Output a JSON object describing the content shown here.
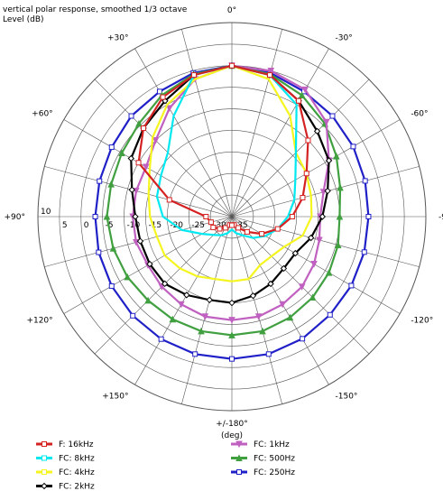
{
  "chart_data": {
    "type": "polar",
    "title": "vertical polar response, smoothed 1/3 octave",
    "ylabel": "Level  (dB)",
    "xlabel": "(deg)",
    "theta": [
      -165,
      -150,
      -135,
      -120,
      -105,
      -90,
      -75,
      -60,
      -45,
      -30,
      -15,
      0,
      15,
      30,
      45,
      60,
      75,
      90,
      105,
      120,
      135,
      150,
      165,
      180
    ],
    "rlim": [
      -35,
      10
    ],
    "rticks": [
      10,
      5,
      0,
      -5,
      -10,
      -15,
      -20,
      -25,
      -30,
      -35
    ],
    "thetaticks": [
      {
        "value": 0,
        "label": "0°"
      },
      {
        "value": -30,
        "label": "-30°"
      },
      {
        "value": -60,
        "label": "-60°"
      },
      {
        "value": -90,
        "label": "-90°"
      },
      {
        "value": -120,
        "label": "-120°"
      },
      {
        "value": -150,
        "label": "-150°"
      },
      {
        "value": 180,
        "label": "+/-180°"
      },
      {
        "value": 150,
        "label": "+150°"
      },
      {
        "value": 120,
        "label": "+120°"
      },
      {
        "value": 90,
        "label": "+90°"
      },
      {
        "value": 60,
        "label": "+60°"
      },
      {
        "value": 30,
        "label": "+30°"
      }
    ],
    "series": [
      {
        "name": "F: 16kHz",
        "color": "#d42222",
        "marker": "square",
        "values": [
          -33,
          -32,
          -30,
          -27,
          -24,
          -21,
          -18,
          -15,
          -10,
          -4,
          -1,
          0,
          -1,
          -3,
          -6,
          -10,
          -20,
          -29,
          -30,
          -30,
          -31,
          -32,
          -33,
          -33
        ]
      },
      {
        "name": "FC: 8kHz",
        "color": "#00e8f0",
        "marker": "none",
        "values": [
          -31,
          -30,
          -28,
          -26,
          -24,
          -22,
          -20,
          -18,
          -14,
          -5,
          -1,
          0,
          -1,
          -8,
          -14,
          -16,
          -17,
          -19,
          -23,
          -27,
          -29,
          -30,
          -31,
          -32
        ]
      },
      {
        "name": "FC: 4kHz",
        "color": "#f5f520",
        "marker": "none",
        "values": [
          -20,
          -22,
          -22,
          -21,
          -18,
          -16.5,
          -16,
          -15,
          -14,
          -8,
          -2,
          0,
          -2,
          -5,
          -9,
          -13,
          -15,
          -16,
          -17,
          -17,
          -18,
          -19,
          -20,
          -20
        ]
      },
      {
        "name": "FC: 2kHz",
        "color": "#000000",
        "marker": "diamond",
        "values": [
          -16,
          -17,
          -18,
          -18,
          -16,
          -14,
          -12,
          -9,
          -7,
          -4,
          -1,
          0,
          -1,
          -4,
          -6,
          -8,
          -11,
          -12.6,
          -13,
          -13,
          -13,
          -14,
          -15,
          -15
        ]
      },
      {
        "name": "FC: 1kHz",
        "color": "#c060c0",
        "marker": "tri-down",
        "values": [
          -11,
          -11.5,
          -12,
          -13,
          -14,
          -14.5,
          -13,
          -9,
          -4,
          -1,
          0,
          0,
          -2,
          -6,
          -10,
          -12,
          -12,
          -12,
          -12,
          -12.5,
          -12,
          -11.5,
          -11,
          -11
        ]
      },
      {
        "name": "FC: 500Hz",
        "color": "#40a040",
        "marker": "tri-up",
        "values": [
          -7.5,
          -8,
          -8.5,
          -9,
          -9.5,
          -10,
          -9,
          -7,
          -4.5,
          -2.5,
          -0.8,
          0,
          -0.8,
          -2.5,
          -4.5,
          -5.5,
          -6,
          -6,
          -6.5,
          -7,
          -7.5,
          -7.5,
          -7.5,
          -7.5
        ]
      },
      {
        "name": "FC: 250Hz",
        "color": "#2020c8",
        "marker": "square",
        "values": [
          -2,
          -2.3,
          -2.8,
          -3,
          -3.2,
          -3.3,
          -3,
          -2.5,
          -2,
          -1.5,
          -0.5,
          0,
          -0.5,
          -1.5,
          -2,
          -2.8,
          -3.2,
          -3.3,
          -3,
          -2.8,
          -2.5,
          -2.2,
          -2,
          -2
        ]
      }
    ]
  }
}
